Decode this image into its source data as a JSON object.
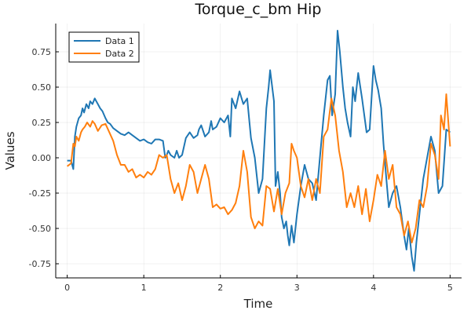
{
  "chart_data": {
    "type": "line",
    "title": "Torque_c_bm Hip",
    "xlabel": "Time",
    "ylabel": "Values",
    "xlim": [
      -0.15,
      5.15
    ],
    "ylim": [
      -0.85,
      0.95
    ],
    "xticks": [
      0,
      1,
      2,
      3,
      4,
      5
    ],
    "xtick_labels": [
      "0",
      "1",
      "2",
      "3",
      "4",
      "5"
    ],
    "yticks": [
      -0.75,
      -0.5,
      -0.25,
      0.0,
      0.25,
      0.5,
      0.75
    ],
    "ytick_labels": [
      "-0.75",
      "-0.50",
      "-0.25",
      "0.00",
      "0.25",
      "0.50",
      "0.75"
    ],
    "grid": true,
    "legend_position": "top-left",
    "series": [
      {
        "name": "Data 1",
        "color": "#1f77b4",
        "x": [
          0.0,
          0.05,
          0.08,
          0.1,
          0.12,
          0.15,
          0.18,
          0.2,
          0.22,
          0.25,
          0.28,
          0.3,
          0.33,
          0.36,
          0.4,
          0.43,
          0.46,
          0.5,
          0.53,
          0.56,
          0.6,
          0.65,
          0.7,
          0.75,
          0.8,
          0.85,
          0.9,
          0.95,
          1.0,
          1.05,
          1.1,
          1.15,
          1.2,
          1.25,
          1.28,
          1.3,
          1.32,
          1.35,
          1.4,
          1.43,
          1.46,
          1.5,
          1.55,
          1.6,
          1.65,
          1.7,
          1.72,
          1.75,
          1.8,
          1.85,
          1.88,
          1.9,
          1.95,
          2.0,
          2.05,
          2.1,
          2.13,
          2.15,
          2.2,
          2.25,
          2.3,
          2.35,
          2.38,
          2.4,
          2.45,
          2.5,
          2.55,
          2.6,
          2.63,
          2.65,
          2.7,
          2.72,
          2.75,
          2.78,
          2.8,
          2.83,
          2.86,
          2.88,
          2.9,
          2.93,
          2.96,
          3.0,
          3.05,
          3.1,
          3.15,
          3.2,
          3.25,
          3.3,
          3.35,
          3.4,
          3.43,
          3.46,
          3.5,
          3.53,
          3.56,
          3.6,
          3.63,
          3.66,
          3.7,
          3.73,
          3.76,
          3.8,
          3.85,
          3.88,
          3.91,
          3.95,
          4.0,
          4.03,
          4.06,
          4.1,
          4.13,
          4.16,
          4.2,
          4.25,
          4.3,
          4.35,
          4.4,
          4.43,
          4.46,
          4.5,
          4.53,
          4.56,
          4.6,
          4.65,
          4.7,
          4.75,
          4.8,
          4.85,
          4.9,
          4.95,
          5.0
        ],
        "y": [
          -0.02,
          -0.02,
          -0.08,
          0.15,
          0.22,
          0.28,
          0.3,
          0.35,
          0.32,
          0.38,
          0.35,
          0.4,
          0.38,
          0.42,
          0.38,
          0.35,
          0.33,
          0.28,
          0.25,
          0.24,
          0.21,
          0.19,
          0.17,
          0.16,
          0.18,
          0.16,
          0.14,
          0.12,
          0.13,
          0.11,
          0.1,
          0.13,
          0.13,
          0.12,
          0.0,
          0.02,
          0.05,
          0.02,
          0.0,
          0.05,
          0.0,
          0.02,
          0.14,
          0.18,
          0.14,
          0.16,
          0.2,
          0.23,
          0.15,
          0.18,
          0.26,
          0.2,
          0.22,
          0.28,
          0.25,
          0.3,
          0.15,
          0.42,
          0.35,
          0.47,
          0.38,
          0.42,
          0.25,
          0.14,
          0.0,
          -0.25,
          -0.15,
          0.35,
          0.5,
          0.62,
          0.4,
          -0.2,
          -0.1,
          -0.25,
          -0.42,
          -0.5,
          -0.45,
          -0.55,
          -0.62,
          -0.48,
          -0.6,
          -0.4,
          -0.2,
          -0.05,
          -0.15,
          -0.18,
          -0.3,
          0.0,
          0.3,
          0.55,
          0.58,
          0.3,
          0.45,
          0.9,
          0.75,
          0.5,
          0.35,
          0.25,
          0.15,
          0.5,
          0.4,
          0.6,
          0.42,
          0.3,
          0.18,
          0.2,
          0.65,
          0.55,
          0.48,
          0.35,
          0.1,
          -0.1,
          -0.35,
          -0.25,
          -0.2,
          -0.35,
          -0.55,
          -0.65,
          -0.5,
          -0.7,
          -0.8,
          -0.6,
          -0.4,
          -0.15,
          0.0,
          0.15,
          0.05,
          -0.25,
          -0.2,
          0.2,
          0.18
        ]
      },
      {
        "name": "Data 2",
        "color": "#ff7f0e",
        "x": [
          0.0,
          0.05,
          0.08,
          0.1,
          0.12,
          0.15,
          0.18,
          0.2,
          0.23,
          0.26,
          0.3,
          0.33,
          0.36,
          0.4,
          0.45,
          0.5,
          0.55,
          0.6,
          0.65,
          0.7,
          0.75,
          0.8,
          0.85,
          0.9,
          0.95,
          1.0,
          1.05,
          1.1,
          1.15,
          1.2,
          1.25,
          1.3,
          1.35,
          1.4,
          1.45,
          1.5,
          1.55,
          1.6,
          1.65,
          1.7,
          1.75,
          1.8,
          1.85,
          1.9,
          1.95,
          2.0,
          2.05,
          2.1,
          2.15,
          2.2,
          2.25,
          2.3,
          2.35,
          2.4,
          2.45,
          2.5,
          2.55,
          2.6,
          2.65,
          2.7,
          2.75,
          2.8,
          2.85,
          2.9,
          2.93,
          2.96,
          3.0,
          3.05,
          3.1,
          3.15,
          3.2,
          3.25,
          3.3,
          3.35,
          3.4,
          3.45,
          3.5,
          3.55,
          3.6,
          3.65,
          3.7,
          3.75,
          3.8,
          3.85,
          3.9,
          3.95,
          4.0,
          4.05,
          4.1,
          4.15,
          4.2,
          4.25,
          4.3,
          4.35,
          4.4,
          4.45,
          4.5,
          4.55,
          4.6,
          4.65,
          4.7,
          4.75,
          4.8,
          4.85,
          4.88,
          4.92,
          4.95,
          5.0
        ],
        "y": [
          -0.06,
          -0.04,
          0.1,
          0.08,
          0.15,
          0.12,
          0.18,
          0.2,
          0.22,
          0.25,
          0.22,
          0.26,
          0.24,
          0.19,
          0.23,
          0.24,
          0.18,
          0.12,
          0.02,
          -0.05,
          -0.05,
          -0.1,
          -0.08,
          -0.14,
          -0.12,
          -0.14,
          -0.1,
          -0.12,
          -0.08,
          0.02,
          0.0,
          0.02,
          -0.15,
          -0.25,
          -0.18,
          -0.3,
          -0.2,
          -0.05,
          -0.1,
          -0.25,
          -0.15,
          -0.05,
          -0.15,
          -0.35,
          -0.33,
          -0.36,
          -0.35,
          -0.4,
          -0.37,
          -0.32,
          -0.2,
          0.05,
          -0.1,
          -0.42,
          -0.5,
          -0.45,
          -0.48,
          -0.2,
          -0.22,
          -0.38,
          -0.22,
          -0.4,
          -0.25,
          -0.18,
          0.1,
          0.05,
          0.0,
          -0.2,
          -0.28,
          -0.15,
          -0.3,
          -0.15,
          -0.25,
          0.15,
          0.2,
          0.42,
          0.3,
          0.05,
          -0.1,
          -0.35,
          -0.25,
          -0.35,
          -0.2,
          -0.4,
          -0.22,
          -0.45,
          -0.3,
          -0.12,
          -0.2,
          0.05,
          -0.15,
          -0.05,
          -0.35,
          -0.4,
          -0.55,
          -0.45,
          -0.6,
          -0.5,
          -0.3,
          -0.35,
          -0.2,
          0.1,
          0.02,
          -0.15,
          0.3,
          0.2,
          0.45,
          0.08
        ]
      }
    ]
  }
}
